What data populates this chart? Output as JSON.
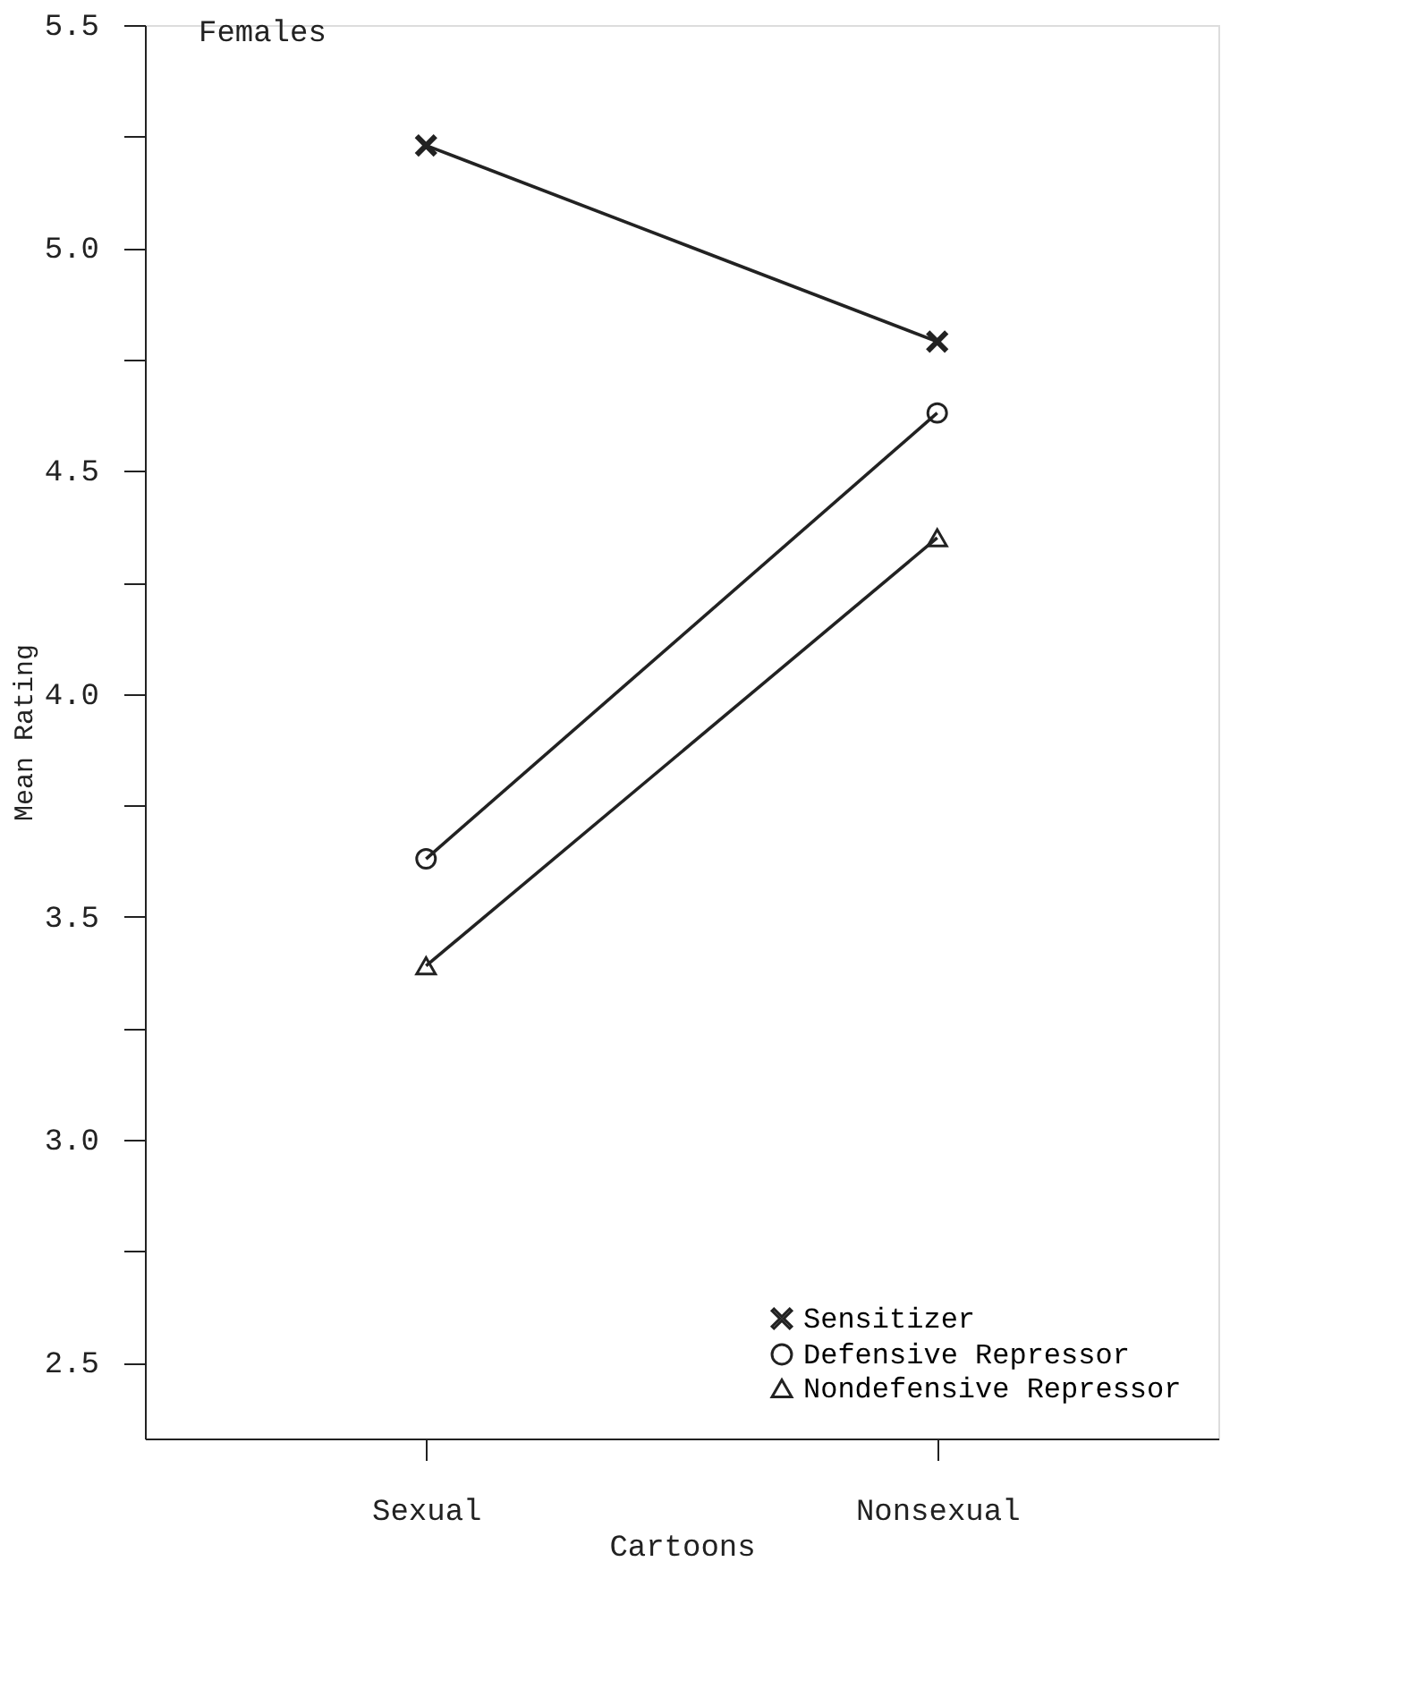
{
  "chart_data": {
    "type": "line",
    "title": "Females",
    "xlabel": "Cartoons",
    "ylabel": "Mean Rating",
    "categories": [
      "Sexual",
      "Nonsexual"
    ],
    "series": [
      {
        "name": "Sensitizer",
        "color": "#222222",
        "marker": "cross",
        "values": [
          5.23,
          4.79
        ]
      },
      {
        "name": "Defensive Repressor",
        "color": "#222222",
        "marker": "circle",
        "values": [
          3.63,
          4.63
        ]
      },
      {
        "name": "Nondefensive Repressor",
        "color": "#222222",
        "marker": "triangle",
        "values": [
          3.39,
          4.35
        ]
      }
    ],
    "ylim": [
      2.33,
      5.5
    ],
    "yticks": [
      {
        "value": 2.5,
        "label": "2.5"
      },
      {
        "value": 2.75,
        "label": null
      },
      {
        "value": 3.0,
        "label": "3.0"
      },
      {
        "value": 3.25,
        "label": null
      },
      {
        "value": 3.5,
        "label": "3.5"
      },
      {
        "value": 3.75,
        "label": null
      },
      {
        "value": 4.0,
        "label": "4.0"
      },
      {
        "value": 4.25,
        "label": null
      },
      {
        "value": 4.5,
        "label": "4.5"
      },
      {
        "value": 4.75,
        "label": null
      },
      {
        "value": 5.0,
        "label": "5.0"
      },
      {
        "value": 5.25,
        "label": null
      },
      {
        "value": 5.5,
        "label": "5.5"
      }
    ],
    "grid": false,
    "legend": "bottom right",
    "line_style": "solid"
  }
}
